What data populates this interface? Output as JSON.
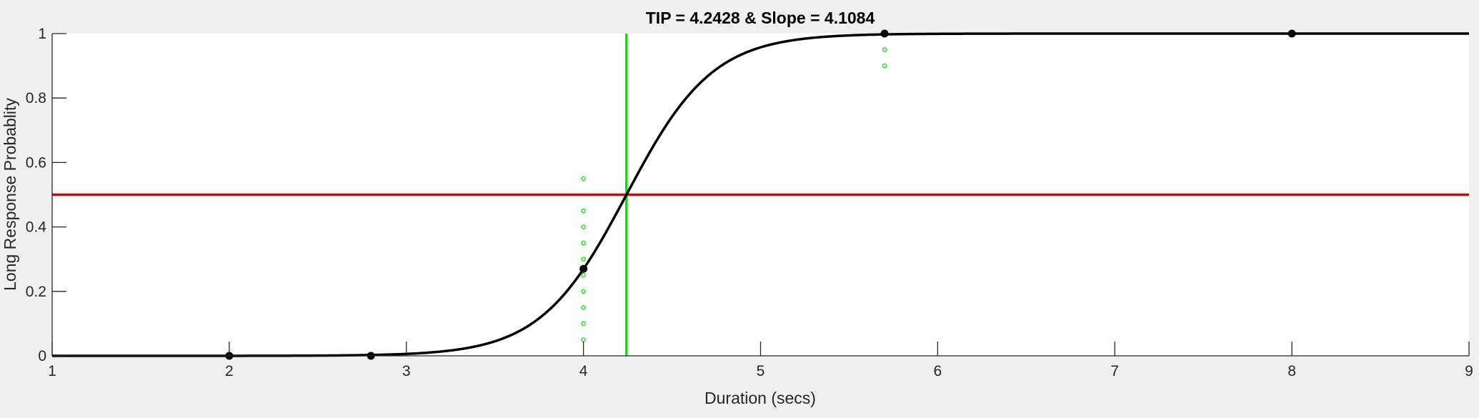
{
  "chart_data": {
    "type": "line",
    "title": "TIP = 4.2428 & Slope = 4.1084",
    "xlabel": "Duration (secs)",
    "ylabel": "Long Response Probablity",
    "xlim": [
      1,
      9
    ],
    "ylim": [
      0,
      1
    ],
    "xticks": [
      1,
      2,
      3,
      4,
      5,
      6,
      7,
      8,
      9
    ],
    "xtick_labels": [
      "1",
      "2",
      "3",
      "4",
      "5",
      "6",
      "7",
      "8",
      "9"
    ],
    "yticks": [
      0,
      0.2,
      0.4,
      0.6,
      0.8,
      1
    ],
    "ytick_labels": [
      "0",
      "0.2",
      "0.4",
      "0.6",
      "0.8",
      "1"
    ],
    "grid": false,
    "legend": "none",
    "colors": {
      "curve": "#000000",
      "threshold": "#e00000",
      "tip_line": "#00e600",
      "bootstrap_points": "#00e600",
      "axes": "#262626",
      "figure_bg": "#f0f0f0",
      "plot_bg": "#ffffff"
    },
    "tip": 4.2428,
    "slope": 4.1084,
    "threshold_y": 0.5,
    "observed_points": [
      {
        "x": 2.0,
        "y": 0.0
      },
      {
        "x": 2.8,
        "y": 0.0
      },
      {
        "x": 4.0,
        "y": 0.27
      },
      {
        "x": 5.7,
        "y": 1.0
      },
      {
        "x": 8.0,
        "y": 1.0
      }
    ],
    "bootstrap_points": [
      {
        "x": 4.0,
        "y": 0.55
      },
      {
        "x": 4.0,
        "y": 0.45
      },
      {
        "x": 4.0,
        "y": 0.4
      },
      {
        "x": 4.0,
        "y": 0.35
      },
      {
        "x": 4.0,
        "y": 0.3
      },
      {
        "x": 4.0,
        "y": 0.25
      },
      {
        "x": 4.0,
        "y": 0.2
      },
      {
        "x": 4.0,
        "y": 0.15
      },
      {
        "x": 4.0,
        "y": 0.1
      },
      {
        "x": 4.0,
        "y": 0.05
      },
      {
        "x": 5.7,
        "y": 0.95
      },
      {
        "x": 5.7,
        "y": 0.9
      }
    ]
  }
}
